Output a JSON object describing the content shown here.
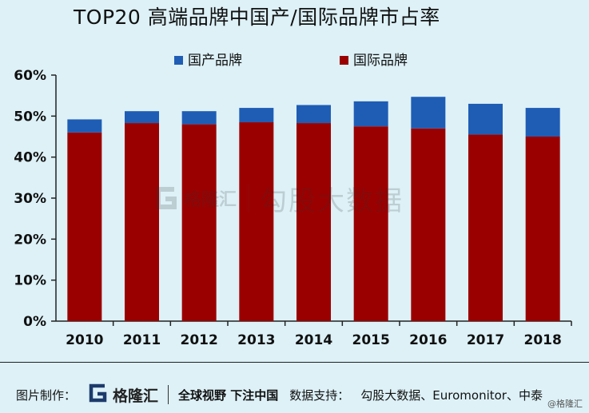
{
  "title": "TOP20 高端品牌中国产/国际品牌市占率",
  "chart_data": {
    "type": "bar",
    "stacked": true,
    "title": "TOP20 高端品牌中国产/国际品牌市占率",
    "categories": [
      "2010",
      "2011",
      "2012",
      "2013",
      "2014",
      "2015",
      "2016",
      "2017",
      "2018"
    ],
    "series": [
      {
        "name": "国际品牌",
        "color": "#9b0000",
        "values": [
          46,
          48.3,
          48,
          48.5,
          48.3,
          47.5,
          47,
          45.5,
          45
        ]
      },
      {
        "name": "国产品牌",
        "color": "#1f5db5",
        "values": [
          3.2,
          2.9,
          3.2,
          3.5,
          4.4,
          6.1,
          7.7,
          7.5,
          7
        ]
      }
    ],
    "legend": [
      {
        "name": "国产品牌",
        "color": "#1f5db5"
      },
      {
        "name": "国际品牌",
        "color": "#9b0000"
      }
    ],
    "yticks": [
      "0%",
      "10%",
      "20%",
      "30%",
      "40%",
      "50%",
      "60%"
    ],
    "ylim": [
      0,
      60
    ],
    "xlabel": "",
    "ylabel": "",
    "grid": false
  },
  "watermark": {
    "brand": "格隆汇",
    "text": "勾股大数据"
  },
  "footer": {
    "made_by": "图片制作：",
    "logo_name": "格隆汇",
    "slogan": "全球视野 下注中国",
    "support": "数据支持：",
    "source": "勾股大数据、Euromonitor、中泰"
  },
  "credit": "@格隆汇"
}
